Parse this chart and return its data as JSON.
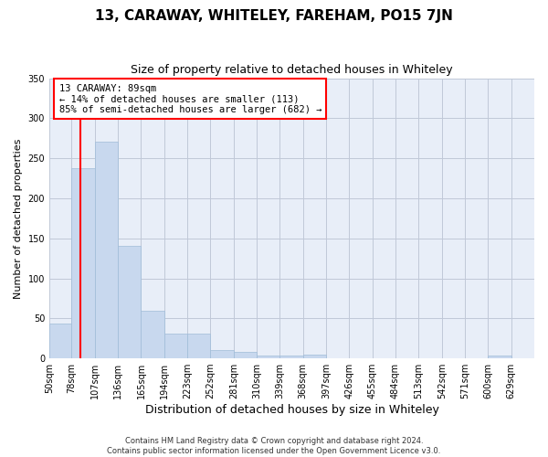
{
  "title": "13, CARAWAY, WHITELEY, FAREHAM, PO15 7JN",
  "subtitle": "Size of property relative to detached houses in Whiteley",
  "xlabel": "Distribution of detached houses by size in Whiteley",
  "ylabel": "Number of detached properties",
  "bar_color": "#c8d8ee",
  "bar_edgecolor": "#a0bcd8",
  "background_color": "#e8eef8",
  "vline_color": "red",
  "annotation_text": "13 CARAWAY: 89sqm\n← 14% of detached houses are smaller (113)\n85% of semi-detached houses are larger (682) →",
  "bin_edges": [
    50,
    78,
    107,
    136,
    165,
    194,
    223,
    252,
    281,
    310,
    339,
    368,
    397,
    426,
    455,
    484,
    513,
    542,
    571,
    600,
    629
  ],
  "bin_labels": [
    "50sqm",
    "78sqm",
    "107sqm",
    "136sqm",
    "165sqm",
    "194sqm",
    "223sqm",
    "252sqm",
    "281sqm",
    "310sqm",
    "339sqm",
    "368sqm",
    "397sqm",
    "426sqm",
    "455sqm",
    "484sqm",
    "513sqm",
    "542sqm",
    "571sqm",
    "600sqm",
    "629sqm"
  ],
  "counts": [
    44,
    238,
    271,
    140,
    59,
    31,
    31,
    10,
    8,
    4,
    4,
    5,
    0,
    0,
    0,
    0,
    0,
    0,
    0,
    3
  ],
  "vline_sqm": 89,
  "ylim": [
    0,
    350
  ],
  "yticks": [
    0,
    50,
    100,
    150,
    200,
    250,
    300,
    350
  ],
  "footer": "Contains HM Land Registry data © Crown copyright and database right 2024.\nContains public sector information licensed under the Open Government Licence v3.0.",
  "grid_color": "#c0c8d8",
  "title_fontsize": 11,
  "subtitle_fontsize": 9,
  "tick_fontsize": 7,
  "ylabel_fontsize": 8,
  "xlabel_fontsize": 9
}
